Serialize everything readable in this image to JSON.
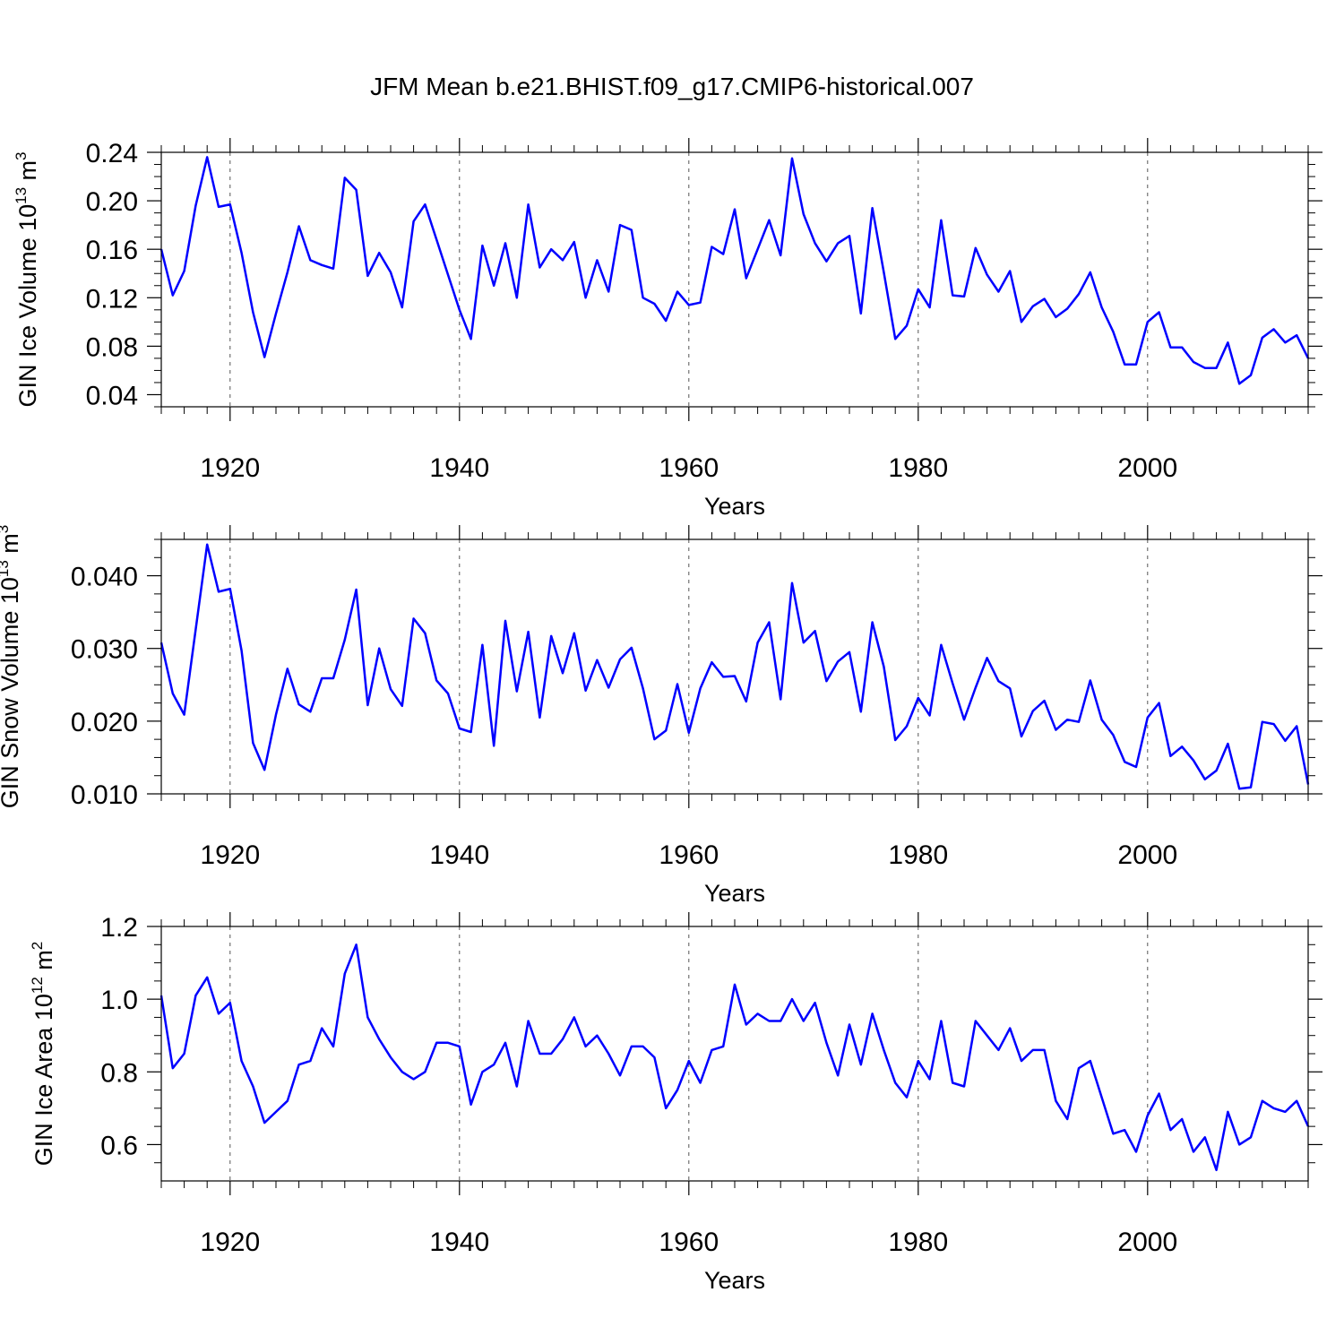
{
  "figure": {
    "title": "JFM Mean b.e21.BHIST.f09_g17.CMIP6-historical.007"
  },
  "chart_data": [
    {
      "type": "line",
      "ylabel_main": "GIN Ice Volume 10",
      "ylabel_exp": "13",
      "ylabel_unit": " m",
      "ylabel_unit_exp": "3",
      "xlabel": "Years",
      "xlim": [
        1914,
        2014
      ],
      "ylim": [
        0.03,
        0.24
      ],
      "x_ticks": [
        1920,
        1940,
        1960,
        1980,
        2000
      ],
      "x_tick_labels": [
        "1920",
        "1940",
        "1960",
        "1980",
        "2000"
      ],
      "y_ticks": [
        0.04,
        0.08,
        0.12,
        0.16,
        0.2,
        0.24
      ],
      "y_tick_labels": [
        "0.04",
        "0.08",
        "0.12",
        "0.16",
        "0.20",
        "0.24"
      ],
      "grid": "vertical dashed at major x ticks",
      "color": "#0000ff",
      "start_year": 1914,
      "series": [
        {
          "name": "GIN Ice Volume",
          "values": [
            0.16,
            0.122,
            0.142,
            0.196,
            0.236,
            0.195,
            0.197,
            0.157,
            0.108,
            0.071,
            0.107,
            0.141,
            0.179,
            0.151,
            0.147,
            0.144,
            0.219,
            0.209,
            0.138,
            0.157,
            0.141,
            0.112,
            0.183,
            0.197,
            0.168,
            0.139,
            0.11,
            0.086,
            0.163,
            0.13,
            0.165,
            0.12,
            0.197,
            0.145,
            0.16,
            0.151,
            0.166,
            0.12,
            0.151,
            0.125,
            0.18,
            0.176,
            0.12,
            0.115,
            0.101,
            0.125,
            0.114,
            0.116,
            0.162,
            0.156,
            0.193,
            0.136,
            0.16,
            0.184,
            0.155,
            0.235,
            0.189,
            0.165,
            0.15,
            0.165,
            0.171,
            0.107,
            0.194,
            0.141,
            0.086,
            0.097,
            0.127,
            0.112,
            0.184,
            0.122,
            0.121,
            0.161,
            0.139,
            0.125,
            0.142,
            0.1,
            0.113,
            0.119,
            0.104,
            0.111,
            0.123,
            0.141,
            0.112,
            0.092,
            0.065,
            0.065,
            0.1,
            0.108,
            0.079,
            0.079,
            0.067,
            0.062,
            0.062,
            0.083,
            0.049,
            0.056,
            0.087,
            0.094,
            0.083,
            0.089,
            0.07
          ]
        }
      ]
    },
    {
      "type": "line",
      "ylabel_main": "GIN Snow Volume 10",
      "ylabel_exp": "13",
      "ylabel_unit": " m",
      "ylabel_unit_exp": "3",
      "xlabel": "Years",
      "xlim": [
        1914,
        2014
      ],
      "ylim": [
        0.01,
        0.045
      ],
      "x_ticks": [
        1920,
        1940,
        1960,
        1980,
        2000
      ],
      "x_tick_labels": [
        "1920",
        "1940",
        "1960",
        "1980",
        "2000"
      ],
      "y_ticks": [
        0.01,
        0.02,
        0.03,
        0.04
      ],
      "y_tick_labels": [
        "0.010",
        "0.020",
        "0.030",
        "0.040"
      ],
      "grid": "vertical dashed at major x ticks",
      "color": "#0000ff",
      "start_year": 1914,
      "series": [
        {
          "name": "GIN Snow Volume",
          "values": [
            0.0308,
            0.0238,
            0.0209,
            0.0326,
            0.0443,
            0.0378,
            0.0382,
            0.0297,
            0.017,
            0.0133,
            0.0209,
            0.0272,
            0.0223,
            0.0213,
            0.0259,
            0.0259,
            0.0312,
            0.0381,
            0.0222,
            0.03,
            0.0244,
            0.0221,
            0.0341,
            0.0321,
            0.0256,
            0.0238,
            0.019,
            0.0185,
            0.0305,
            0.0166,
            0.0338,
            0.0241,
            0.0323,
            0.0205,
            0.0317,
            0.0266,
            0.0321,
            0.0242,
            0.0284,
            0.0246,
            0.0285,
            0.0301,
            0.0245,
            0.0175,
            0.0187,
            0.0251,
            0.0184,
            0.0245,
            0.0281,
            0.0261,
            0.0262,
            0.0227,
            0.0308,
            0.0336,
            0.023,
            0.039,
            0.0308,
            0.0324,
            0.0255,
            0.0282,
            0.0295,
            0.0213,
            0.0336,
            0.0275,
            0.0174,
            0.0193,
            0.0232,
            0.0208,
            0.0305,
            0.0252,
            0.0202,
            0.0246,
            0.0287,
            0.0255,
            0.0245,
            0.0179,
            0.0214,
            0.0228,
            0.0188,
            0.0202,
            0.0199,
            0.0256,
            0.0202,
            0.0181,
            0.0144,
            0.0137,
            0.0205,
            0.0225,
            0.0152,
            0.0165,
            0.0146,
            0.012,
            0.0132,
            0.0169,
            0.0107,
            0.0109,
            0.0199,
            0.0196,
            0.0173,
            0.0193,
            0.0113
          ]
        }
      ]
    },
    {
      "type": "line",
      "ylabel_main": "GIN Ice Area 10",
      "ylabel_exp": "12",
      "ylabel_unit": " m",
      "ylabel_unit_exp": "2",
      "xlabel": "Years",
      "xlim": [
        1914,
        2014
      ],
      "ylim": [
        0.5,
        1.2
      ],
      "x_ticks": [
        1920,
        1940,
        1960,
        1980,
        2000
      ],
      "x_tick_labels": [
        "1920",
        "1940",
        "1960",
        "1980",
        "2000"
      ],
      "y_ticks": [
        0.6,
        0.8,
        1.0,
        1.2
      ],
      "y_tick_labels": [
        "0.6",
        "0.8",
        "1.0",
        "1.2"
      ],
      "grid": "vertical dashed at major x ticks",
      "color": "#0000ff",
      "start_year": 1914,
      "series": [
        {
          "name": "GIN Ice Area",
          "values": [
            1.01,
            0.81,
            0.85,
            1.01,
            1.06,
            0.96,
            0.99,
            0.83,
            0.76,
            0.66,
            0.69,
            0.72,
            0.82,
            0.83,
            0.92,
            0.87,
            1.07,
            1.15,
            0.95,
            0.89,
            0.84,
            0.8,
            0.78,
            0.8,
            0.88,
            0.88,
            0.87,
            0.71,
            0.8,
            0.82,
            0.88,
            0.76,
            0.94,
            0.85,
            0.85,
            0.89,
            0.95,
            0.87,
            0.9,
            0.85,
            0.79,
            0.87,
            0.87,
            0.84,
            0.7,
            0.75,
            0.83,
            0.77,
            0.86,
            0.87,
            1.04,
            0.93,
            0.96,
            0.94,
            0.94,
            1.0,
            0.94,
            0.99,
            0.88,
            0.79,
            0.93,
            0.82,
            0.96,
            0.86,
            0.77,
            0.73,
            0.83,
            0.78,
            0.94,
            0.77,
            0.76,
            0.94,
            0.9,
            0.86,
            0.92,
            0.83,
            0.86,
            0.86,
            0.72,
            0.67,
            0.81,
            0.83,
            0.73,
            0.63,
            0.64,
            0.58,
            0.68,
            0.74,
            0.64,
            0.67,
            0.58,
            0.62,
            0.53,
            0.69,
            0.6,
            0.62,
            0.72,
            0.7,
            0.69,
            0.72,
            0.65
          ]
        }
      ]
    }
  ]
}
